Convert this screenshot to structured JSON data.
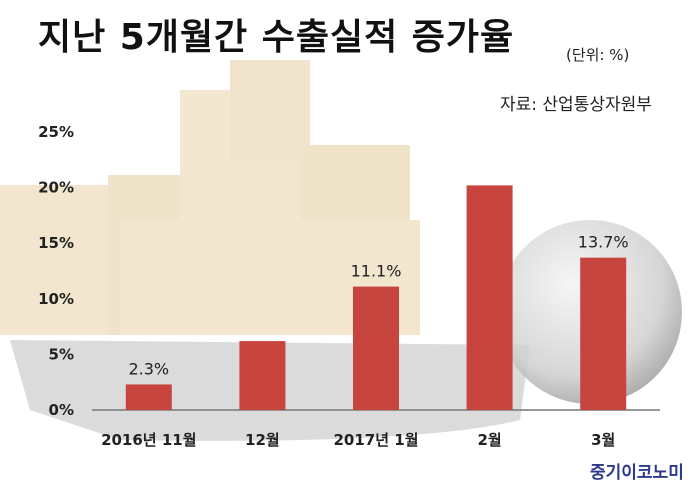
{
  "header": {
    "title": "지난 5개월간 수출실적 증가율",
    "unit_note": "(단위: %)",
    "source": "자료: 산업통상자원부"
  },
  "footer": {
    "brand": "중기이코노미"
  },
  "colors": {
    "bar": "#c8453f",
    "axis": "#777777"
  },
  "chart_data": {
    "type": "bar",
    "title": "지난 5개월간 수출실적 증가율",
    "categories": [
      "2016년 11월",
      "12월",
      "2017년 1월",
      "2월",
      "3월"
    ],
    "values": [
      2.3,
      6.2,
      11.1,
      20.2,
      13.7
    ],
    "data_labels": [
      "2.3%",
      "",
      "11.1%",
      "",
      "13.7%"
    ],
    "y_ticks": [
      "0%",
      "5%",
      "10%",
      "15%",
      "20%",
      "25%"
    ],
    "ylim": [
      0,
      25
    ],
    "xlabel": "",
    "ylabel": "",
    "grid": false
  }
}
